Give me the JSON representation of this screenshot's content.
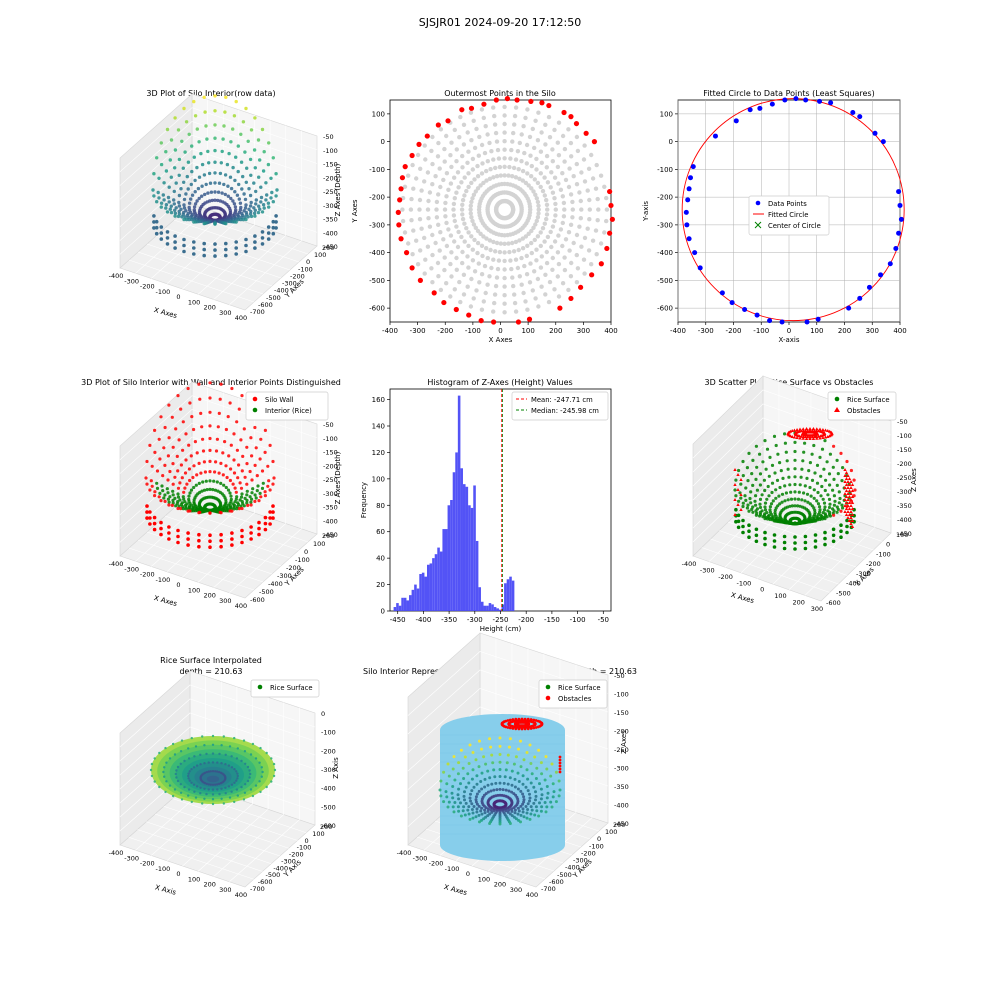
{
  "suptitle": "SJSJR01 2024-09-20 17:12:50",
  "colors": {
    "wall": "#ff0000",
    "rice": "#008000",
    "gray": "#d3d3d3",
    "blue": "#0000ff",
    "hist": "#4a4af5",
    "cylinder": "#87ceeb",
    "mean": "#ff0000",
    "median": "#008000"
  },
  "panels": {
    "p1": {
      "title": "3D Plot of Silo Interior(row data)",
      "xlabel": "X Axes",
      "ylabel": "Y Axes",
      "zlabel": "Z Axes (Depth)",
      "xticks": [
        "-400",
        "-300",
        "-200",
        "-100",
        "0",
        "100",
        "200",
        "300",
        "400"
      ],
      "yticks": [
        "-700",
        "-600",
        "-500",
        "-400",
        "-300",
        "-200",
        "-100",
        "0",
        "100",
        "200"
      ],
      "zticks": [
        "-50",
        "-100",
        "-150",
        "-200",
        "-250",
        "-300",
        "-350",
        "-400",
        "-450"
      ]
    },
    "p2": {
      "title": "Outermost Points in the Silo",
      "xlabel": "X Axes",
      "ylabel": "Y Axes",
      "xticks": [
        "-400",
        "-300",
        "-200",
        "-100",
        "0",
        "100",
        "200",
        "300",
        "400"
      ],
      "yticks": [
        "100",
        "0",
        "-100",
        "-200",
        "-300",
        "-400",
        "-500",
        "-600"
      ]
    },
    "p3": {
      "title": "Fitted Circle to Data Points (Least Squares)",
      "xlabel": "X-axis",
      "ylabel": "Y-axis",
      "xticks": [
        "-400",
        "-300",
        "-200",
        "-100",
        "0",
        "100",
        "200",
        "300",
        "400"
      ],
      "yticks": [
        "100",
        "0",
        "-100",
        "-200",
        "-300",
        "-400",
        "-500",
        "-600"
      ],
      "legend": [
        "Data Points",
        "Fitted Circle",
        "Center of Circle"
      ]
    },
    "p4": {
      "title": "3D Plot of Silo Interior with Wall and Interior Points Distinguished",
      "xlabel": "X Axes",
      "ylabel": "Y Axes",
      "zlabel": "Z Axes (Depth)",
      "xticks": [
        "-400",
        "-300",
        "-200",
        "-100",
        "0",
        "100",
        "200",
        "300",
        "400"
      ],
      "yticks": [
        "-600",
        "-500",
        "-400",
        "-300",
        "-200",
        "-100",
        "0",
        "100",
        "200"
      ],
      "zticks": [
        "-50",
        "-100",
        "-150",
        "-200",
        "-250",
        "-300",
        "-350",
        "-400",
        "-450"
      ],
      "legend": [
        "Silo Wall",
        "Interior (Rice)"
      ]
    },
    "p5": {
      "title": "Histogram of Z-Axes (Height) Values",
      "xlabel": "Height (cm)",
      "ylabel": "Frequency",
      "xticks": [
        "-450",
        "-400",
        "-350",
        "-300",
        "-250",
        "-200",
        "-150",
        "-100",
        "-50"
      ],
      "yticks": [
        "0",
        "20",
        "40",
        "60",
        "80",
        "100",
        "120",
        "140",
        "160"
      ],
      "legend": [
        "Mean: -247.71 cm",
        "Median: -245.98 cm"
      ]
    },
    "p6": {
      "title": "3D Scatter Plot: Rice Surface vs Obstacles",
      "xlabel": "X Axes",
      "ylabel": "Y Axes",
      "zlabel": "Z Axes",
      "xticks": [
        "-400",
        "-300",
        "-200",
        "-100",
        "0",
        "100",
        "200",
        "300"
      ],
      "yticks": [
        "-600",
        "-500",
        "-400",
        "-300",
        "-200",
        "-100",
        "0",
        "100"
      ],
      "zticks": [
        "-50",
        "-100",
        "-150",
        "-200",
        "-250",
        "-300",
        "-350",
        "-400",
        "-450"
      ],
      "legend": [
        "Rice Surface",
        "Obstacles"
      ]
    },
    "p7": {
      "title": "Rice Surface Interpolated",
      "subtitle": "depth = 210.63",
      "xlabel": "X Axis",
      "ylabel": "Y Axis",
      "zlabel": "Z Axis",
      "xticks": [
        "-400",
        "-300",
        "-200",
        "-100",
        "0",
        "100",
        "200",
        "300",
        "400"
      ],
      "yticks": [
        "-700",
        "-600",
        "-500",
        "-400",
        "-300",
        "-200",
        "-100",
        "0",
        "100",
        "200"
      ],
      "zticks": [
        "0",
        "-100",
        "-200",
        "-300",
        "-400",
        "-500",
        "-600"
      ],
      "legend": [
        "Rice Surface"
      ]
    },
    "p8": {
      "title": "Silo Interior Representation using weighted average depth = 210.63",
      "xlabel": "X Axes",
      "ylabel": "Y Axes",
      "zlabel": "Z Axes",
      "xticks": [
        "-400",
        "-300",
        "-200",
        "-100",
        "0",
        "100",
        "200",
        "300",
        "400"
      ],
      "yticks": [
        "-700",
        "-600",
        "-500",
        "-400",
        "-300",
        "-200",
        "-100",
        "0",
        "100",
        "200"
      ],
      "zticks": [
        "-50",
        "-100",
        "-150",
        "-200",
        "-250",
        "-300",
        "-350",
        "-400",
        "-450"
      ],
      "legend": [
        "Rice Surface",
        "Obstacles"
      ]
    }
  },
  "chart_data": [
    {
      "type": "scatter",
      "title": "3D Plot of Silo Interior(row data)",
      "xlabel": "X Axes",
      "ylabel": "Y Axes",
      "zlabel": "Z Axes (Depth)",
      "xlim": [
        -400,
        400
      ],
      "ylim": [
        -700,
        200
      ],
      "zlim": [
        -450,
        -50
      ],
      "colormap": "viridis",
      "grid": true
    },
    {
      "type": "scatter",
      "title": "Outermost Points in the Silo",
      "xlabel": "X Axes",
      "ylabel": "Y Axes",
      "xlim": [
        -400,
        400
      ],
      "ylim": [
        -650,
        150
      ],
      "series": [
        {
          "color": "#ff0000",
          "points": [
            [
              -370,
              -255
            ],
            [
              -365,
              -210
            ],
            [
              -368,
              -300
            ],
            [
              -360,
              -170
            ],
            [
              -355,
              -130
            ],
            [
              -360,
              -350
            ],
            [
              -345,
              -90
            ],
            [
              -340,
              -400
            ],
            [
              -320,
              -50
            ],
            [
              -320,
              -455
            ],
            [
              -295,
              -10
            ],
            [
              -290,
              -500
            ],
            [
              -265,
              20
            ],
            [
              -240,
              -545
            ],
            [
              -225,
              60
            ],
            [
              -205,
              -580
            ],
            [
              -190,
              75
            ],
            [
              -160,
              -605
            ],
            [
              -140,
              115
            ],
            [
              -115,
              -625
            ],
            [
              -105,
              120
            ],
            [
              -70,
              -645
            ],
            [
              -60,
              135
            ],
            [
              -25,
              -650
            ],
            [
              -15,
              150
            ],
            [
              25,
              155
            ],
            [
              65,
              -650
            ],
            [
              60,
              150
            ],
            [
              105,
              -640
            ],
            [
              110,
              145
            ],
            [
              150,
              140
            ],
            [
              215,
              -600
            ],
            [
              175,
              130
            ],
            [
              230,
              105
            ],
            [
              255,
              -565
            ],
            [
              255,
              90
            ],
            [
              290,
              -525
            ],
            [
              275,
              65
            ],
            [
              310,
              30
            ],
            [
              330,
              -480
            ],
            [
              340,
              0
            ],
            [
              365,
              -440
            ],
            [
              385,
              -385
            ],
            [
              395,
              -180
            ],
            [
              400,
              -230
            ],
            [
              405,
              -280
            ],
            [
              395,
              -330
            ]
          ]
        },
        {
          "color": "#d3d3d3",
          "note": "interior rays"
        }
      ]
    },
    {
      "type": "scatter",
      "title": "Fitted Circle to Data Points (Least Squares)",
      "xlabel": "X-axis",
      "ylabel": "Y-axis",
      "xlim": [
        -400,
        400
      ],
      "ylim": [
        -650,
        150
      ],
      "grid": true,
      "circle": {
        "cx": 15,
        "cy": -245,
        "r": 400
      },
      "series": [
        {
          "name": "Data Points",
          "points": [
            [
              -370,
              -255
            ],
            [
              -365,
              -210
            ],
            [
              -368,
              -300
            ],
            [
              -360,
              -170
            ],
            [
              -355,
              -130
            ],
            [
              -360,
              -350
            ],
            [
              -345,
              -90
            ],
            [
              -340,
              -400
            ],
            [
              -320,
              -455
            ],
            [
              -265,
              20
            ],
            [
              -240,
              -545
            ],
            [
              -205,
              -580
            ],
            [
              -190,
              75
            ],
            [
              -160,
              -605
            ],
            [
              -140,
              115
            ],
            [
              -115,
              -625
            ],
            [
              -105,
              120
            ],
            [
              -70,
              -645
            ],
            [
              -60,
              135
            ],
            [
              -25,
              -650
            ],
            [
              -15,
              150
            ],
            [
              25,
              155
            ],
            [
              65,
              -650
            ],
            [
              60,
              150
            ],
            [
              105,
              -640
            ],
            [
              110,
              145
            ],
            [
              150,
              140
            ],
            [
              215,
              -600
            ],
            [
              230,
              105
            ],
            [
              255,
              -565
            ],
            [
              255,
              90
            ],
            [
              290,
              -525
            ],
            [
              310,
              30
            ],
            [
              330,
              -480
            ],
            [
              340,
              0
            ],
            [
              365,
              -440
            ],
            [
              385,
              -385
            ],
            [
              395,
              -180
            ],
            [
              400,
              -230
            ],
            [
              405,
              -280
            ],
            [
              395,
              -330
            ]
          ]
        },
        {
          "name": "Fitted Circle"
        },
        {
          "name": "Center of Circle",
          "points": [
            [
              15,
              -245
            ]
          ]
        }
      ]
    },
    {
      "type": "scatter",
      "title": "3D Plot of Silo Interior with Wall and Interior Points Distinguished",
      "xlim": [
        -400,
        400
      ],
      "ylim": [
        -600,
        200
      ],
      "zlim": [
        -450,
        -50
      ],
      "series": [
        {
          "name": "Silo Wall",
          "color": "#ff0000"
        },
        {
          "name": "Interior (Rice)",
          "color": "#008000"
        }
      ]
    },
    {
      "type": "bar",
      "title": "Histogram of Z-Axes (Height) Values",
      "xlabel": "Height (cm)",
      "ylabel": "Frequency",
      "xlim": [
        -465,
        -35
      ],
      "ylim": [
        0,
        168
      ],
      "bin_start": -458,
      "bin_width": 5,
      "values": [
        3,
        6,
        4,
        10,
        10,
        8,
        12,
        16,
        20,
        17,
        28,
        29,
        26,
        35,
        36,
        40,
        43,
        48,
        45,
        62,
        62,
        80,
        84,
        105,
        120,
        163,
        108,
        96,
        94,
        80,
        78,
        95,
        53,
        18,
        7,
        4,
        4,
        6,
        5,
        3,
        2,
        1,
        5,
        21,
        24,
        26,
        23
      ],
      "mean": -247.71,
      "median": -245.98,
      "legend": [
        "Mean: -247.71 cm",
        "Median: -245.98 cm"
      ]
    },
    {
      "type": "scatter",
      "title": "3D Scatter Plot: Rice Surface vs Obstacles",
      "xlim": [
        -400,
        300
      ],
      "ylim": [
        -600,
        100
      ],
      "zlim": [
        -450,
        -50
      ],
      "series": [
        {
          "name": "Rice Surface",
          "color": "#008000"
        },
        {
          "name": "Obstacles",
          "color": "#ff0000"
        }
      ]
    },
    {
      "type": "scatter",
      "title": "Rice Surface Interpolated\ndepth = 210.63",
      "xlim": [
        -400,
        400
      ],
      "ylim": [
        -700,
        200
      ],
      "zlim": [
        -600,
        0
      ],
      "series": [
        {
          "name": "Rice Surface",
          "color": "#008000"
        }
      ]
    },
    {
      "type": "scatter",
      "title": "Silo Interior Representation using weighted average depth = 210.63",
      "xlim": [
        -400,
        400
      ],
      "ylim": [
        -700,
        200
      ],
      "zlim": [
        -450,
        -50
      ],
      "series": [
        {
          "name": "Rice Surface",
          "color": "#008000"
        },
        {
          "name": "Obstacles",
          "color": "#ff0000"
        }
      ]
    }
  ]
}
